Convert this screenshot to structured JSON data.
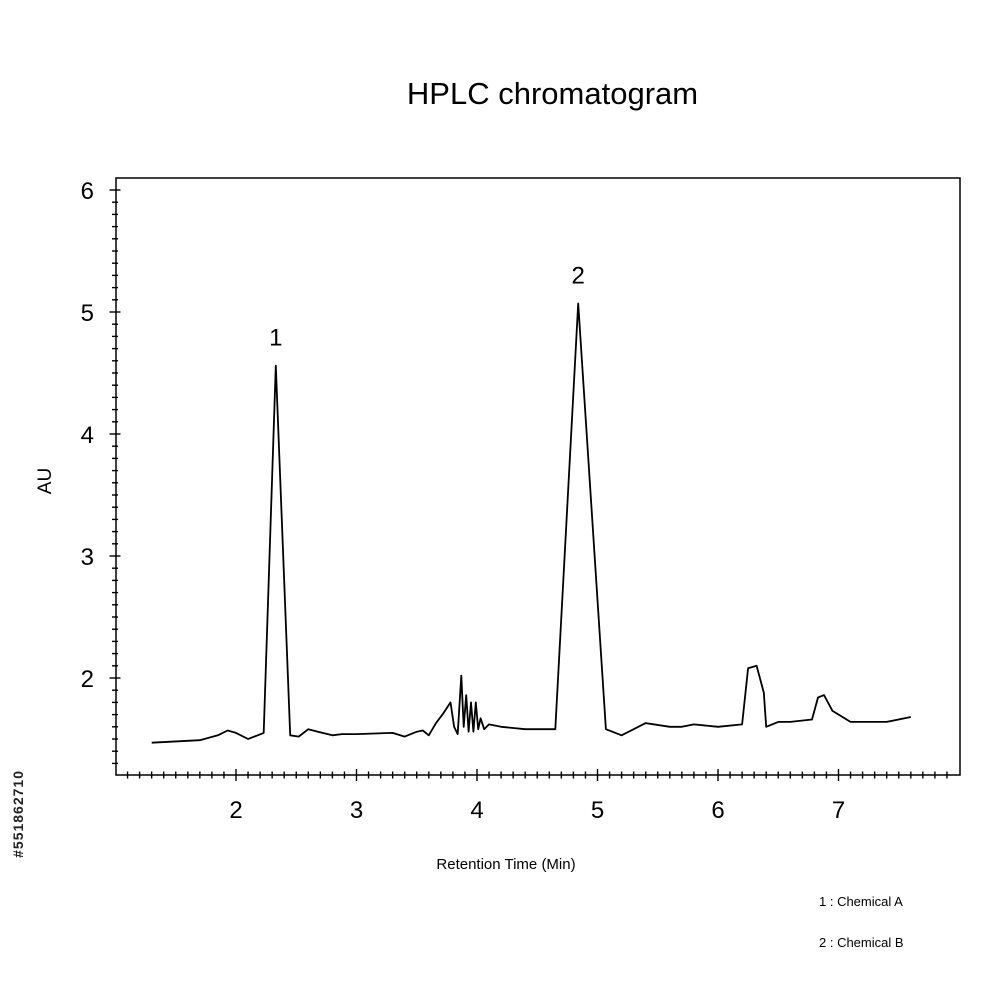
{
  "chart_data": {
    "type": "line",
    "title": "HPLC chromatogram",
    "xlabel": "Retention Time (Min)",
    "ylabel": "AU",
    "xlim": [
      1.0,
      8.0
    ],
    "ylim": [
      1.2,
      6.1
    ],
    "x_ticks": [
      2,
      3,
      4,
      5,
      6,
      7
    ],
    "y_ticks": [
      2,
      3,
      4,
      5,
      6
    ],
    "grid": false,
    "series": [
      {
        "x": [
          1.3,
          1.7,
          1.85,
          1.93,
          2.0,
          2.1,
          2.18,
          2.23,
          2.33,
          2.45,
          2.52,
          2.6,
          2.68,
          2.8,
          2.88,
          3.0,
          3.3,
          3.4,
          3.5,
          3.55,
          3.6,
          3.66,
          3.72,
          3.78,
          3.81,
          3.84,
          3.87,
          3.89,
          3.91,
          3.93,
          3.95,
          3.97,
          3.99,
          4.01,
          4.03,
          4.06,
          4.08,
          4.1,
          4.2,
          4.4,
          4.65,
          4.84,
          5.07,
          5.2,
          5.4,
          5.6,
          5.7,
          5.8,
          6.0,
          6.2,
          6.25,
          6.32,
          6.38,
          6.4,
          6.5,
          6.6,
          6.78,
          6.83,
          6.88,
          6.95,
          7.1,
          7.4,
          7.6
        ],
        "y": [
          1.47,
          1.49,
          1.53,
          1.57,
          1.55,
          1.5,
          1.53,
          1.55,
          4.56,
          1.53,
          1.52,
          1.58,
          1.56,
          1.53,
          1.54,
          1.54,
          1.55,
          1.52,
          1.56,
          1.57,
          1.53,
          1.63,
          1.71,
          1.8,
          1.6,
          1.54,
          2.02,
          1.6,
          1.86,
          1.56,
          1.8,
          1.56,
          1.8,
          1.58,
          1.67,
          1.58,
          1.6,
          1.62,
          1.6,
          1.58,
          1.58,
          5.07,
          1.58,
          1.53,
          1.63,
          1.6,
          1.6,
          1.62,
          1.6,
          1.62,
          2.08,
          2.1,
          1.88,
          1.6,
          1.64,
          1.64,
          1.66,
          1.84,
          1.86,
          1.73,
          1.64,
          1.64,
          1.68
        ]
      }
    ],
    "peak_labels": [
      {
        "text": "1",
        "x": 2.33,
        "y": 4.56
      },
      {
        "text": "2",
        "x": 4.84,
        "y": 5.07
      }
    ],
    "legend": [
      "1 : Chemical A",
      "2 : Chemical B"
    ],
    "legend_position": "bottom-right"
  },
  "side_id": "#551862710"
}
